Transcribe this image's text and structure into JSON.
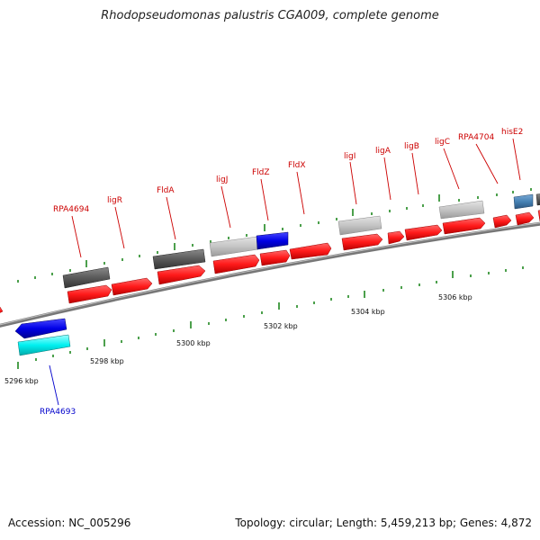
{
  "title": "Rhodopseudomonas palustris CGA009, complete genome",
  "footer": {
    "accession": "Accession: NC_005296",
    "topology": "Topology: circular; Length: 5,459,213 bp; Genes: 4,872"
  },
  "scale_labels": [
    "5296 kbp",
    "5298 kbp",
    "5300 kbp",
    "5302 kbp",
    "5304 kbp",
    "5306 kbp"
  ],
  "gene_labels": [
    "RPA4693",
    "RPA4694",
    "ligR",
    "FldA",
    "ligJ",
    "FldZ",
    "FldX",
    "ligI",
    "ligA",
    "ligB",
    "ligC",
    "RPA4704",
    "hisE2"
  ],
  "colors": {
    "cds_forward": "#ff1a1a",
    "cds_reverse": "#0000e6",
    "dark_gray": "#555555",
    "light_gray": "#bdbdbd",
    "cyan": "#00f0f0",
    "steel_blue": "#4682b4",
    "backbone": "#808080",
    "tick": "#007700",
    "label_red": "#cc0000",
    "label_blue": "#0000cc"
  }
}
